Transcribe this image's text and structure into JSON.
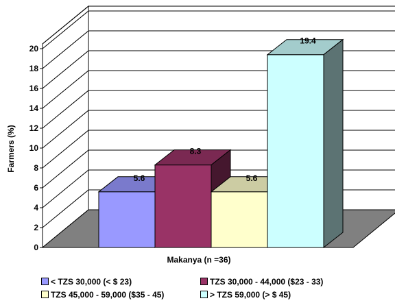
{
  "chart_data": {
    "type": "bar",
    "style": "3d",
    "title": "",
    "xlabel": "Makanya (n =36)",
    "ylabel": "Farmers (%)",
    "ylim": [
      0,
      20
    ],
    "yticks": [
      0,
      2,
      4,
      6,
      8,
      10,
      12,
      14,
      16,
      18,
      20
    ],
    "grid": true,
    "legend_position": "bottom",
    "series": [
      {
        "name": "< TZS 30,000 (< $ 23)",
        "value": 5.6,
        "label": "5.6",
        "color": "#9999ff"
      },
      {
        "name": "TZS 30,000 - 44,000 ($23 - 33)",
        "value": 8.3,
        "label": "8.3",
        "color": "#993366"
      },
      {
        "name": "TZS 45,000 - 59,000 ($35 - 45)",
        "value": 5.6,
        "label": "5.6",
        "color": "#ffffcc"
      },
      {
        "name": "> TZS 59,000 (> $ 45)",
        "value": 19.4,
        "label": "19.4",
        "color": "#ccffff"
      }
    ],
    "floor_color": "#808080"
  }
}
